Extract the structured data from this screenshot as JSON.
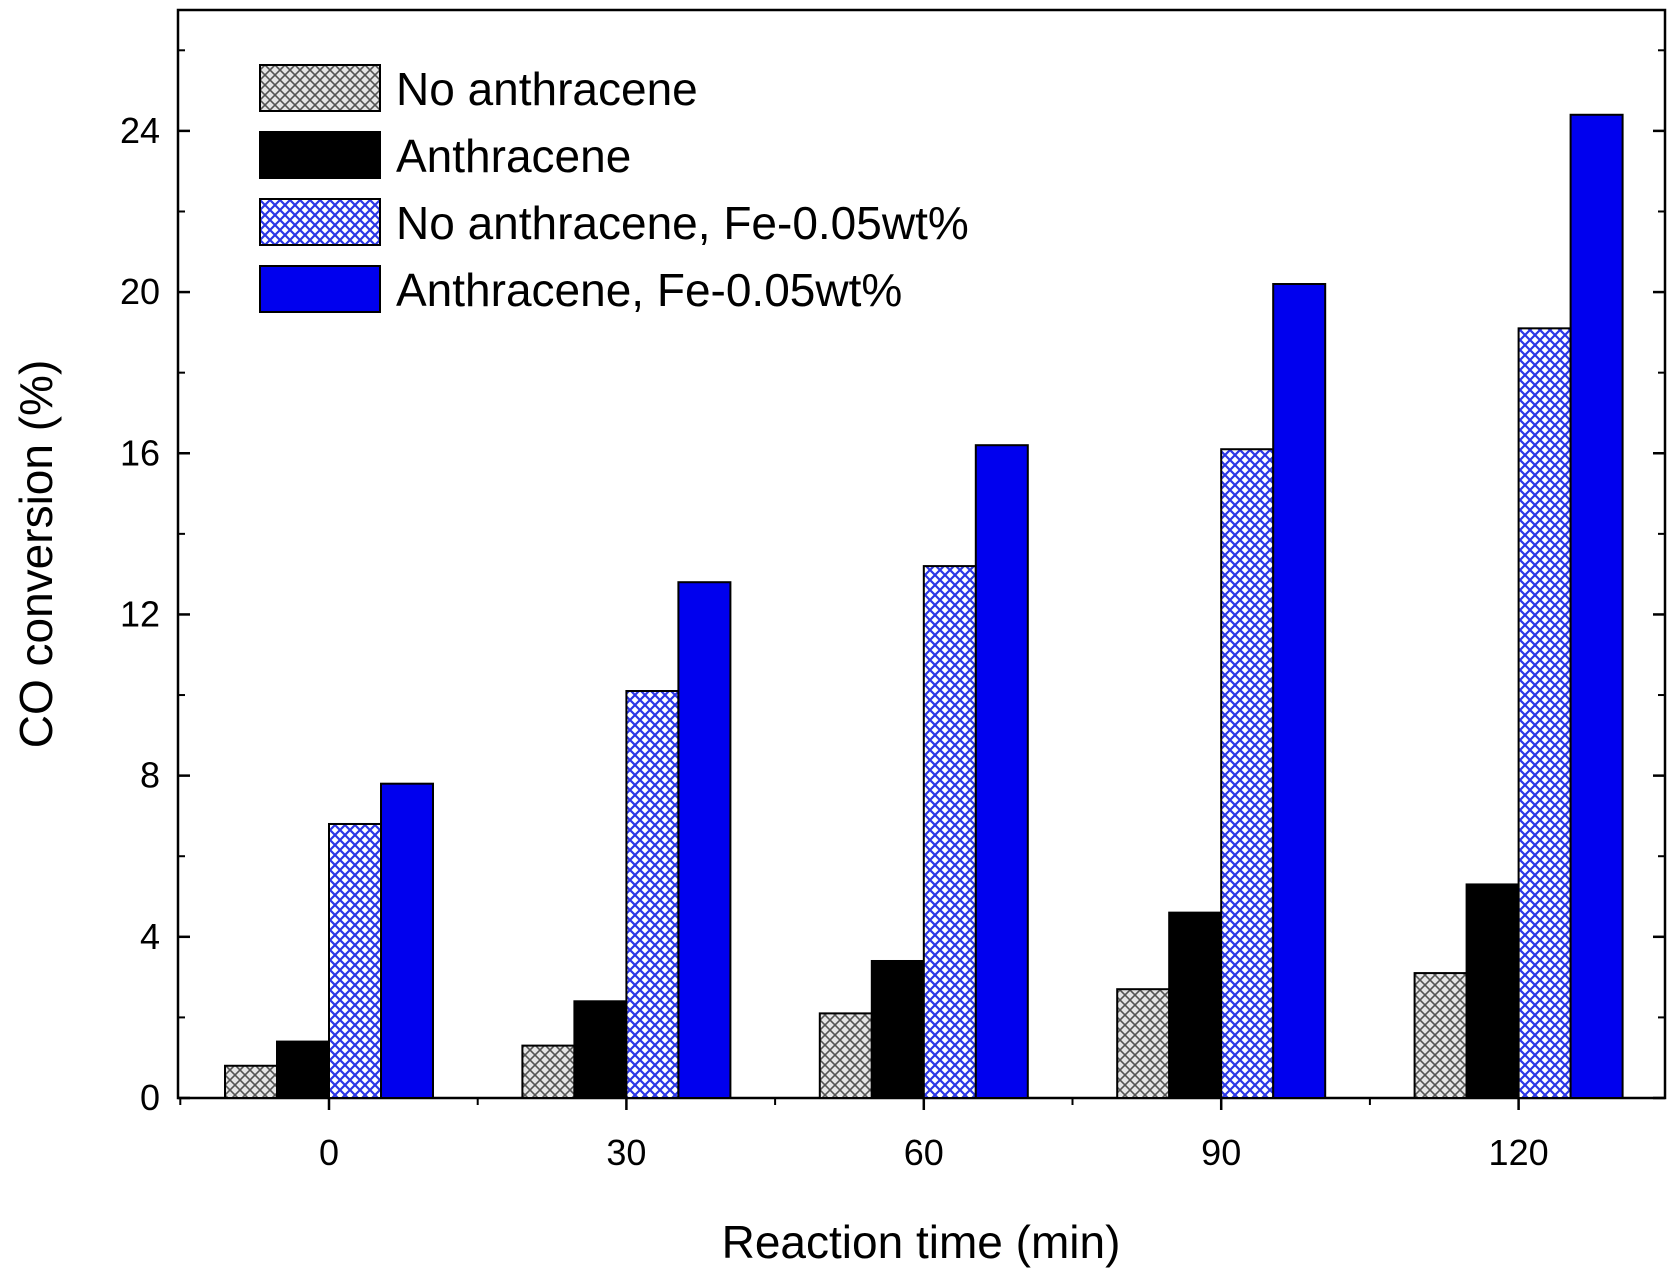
{
  "chart_data": {
    "type": "bar",
    "title": "",
    "xlabel": "Reaction time (min)",
    "ylabel": "CO conversion (%)",
    "categories": [
      "0",
      "30",
      "60",
      "90",
      "120"
    ],
    "ylim": [
      0,
      27
    ],
    "yticks": [
      "0",
      "4",
      "8",
      "12",
      "16",
      "20",
      "24"
    ],
    "legend_position": "top-left",
    "series": [
      {
        "name": "No anthracene",
        "values": [
          0.8,
          1.3,
          2.1,
          2.7,
          3.1
        ],
        "color": "#d0d0d0",
        "pattern": "crosshatch-gray"
      },
      {
        "name": "Anthracene",
        "values": [
          1.4,
          2.4,
          3.4,
          4.6,
          5.3
        ],
        "color": "#000000",
        "pattern": "solid"
      },
      {
        "name": "No anthracene, Fe-0.05wt%",
        "values": [
          6.8,
          10.1,
          13.2,
          16.1,
          19.1
        ],
        "color": "#3a46e8",
        "pattern": "crosshatch-blue"
      },
      {
        "name": "Anthracene, Fe-0.05wt%",
        "values": [
          7.8,
          12.8,
          16.2,
          20.2,
          24.4
        ],
        "color": "#0000ee",
        "pattern": "solid"
      }
    ]
  }
}
